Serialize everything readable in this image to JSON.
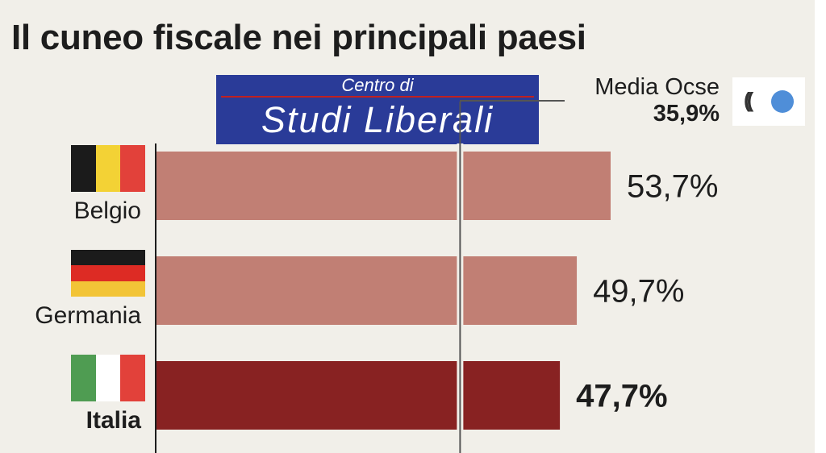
{
  "title": "Il cuneo fiscale nei principali paesi",
  "watermark": {
    "line1": "Centro di",
    "line2": "Studi Liberali",
    "background": "#2a3b98"
  },
  "reference": {
    "label": "Media Ocse",
    "value_label": "35,9%",
    "value": 35.9,
    "logo_icon": "oecd-logo-icon"
  },
  "chart_data": {
    "type": "bar",
    "orientation": "horizontal",
    "categories": [
      "Belgio",
      "Germania",
      "Italia"
    ],
    "values": [
      53.7,
      49.7,
      47.7
    ],
    "data_labels": [
      "53,7%",
      "49,7%",
      "47,7%"
    ],
    "highlight": "Italia",
    "reference_line": {
      "name": "Media Ocse",
      "value": 35.9
    },
    "colors": {
      "default": "#c17f74",
      "highlight": "#882222",
      "divider": "#f1efe9"
    },
    "title": "Il cuneo fiscale nei principali paesi",
    "xlabel": "",
    "ylabel": "",
    "xlim": [
      0,
      60
    ],
    "grid": false,
    "legend": "none"
  },
  "flags": [
    {
      "country": "Belgio",
      "orientation": "vertical",
      "colors": [
        "#1b1b1b",
        "#f3d235",
        "#e2413a"
      ]
    },
    {
      "country": "Germania",
      "orientation": "horizontal",
      "colors": [
        "#1b1b1b",
        "#dd2b24",
        "#f2c437"
      ]
    },
    {
      "country": "Italia",
      "orientation": "vertical",
      "colors": [
        "#4f9c52",
        "#ffffff",
        "#e2413a"
      ]
    }
  ]
}
